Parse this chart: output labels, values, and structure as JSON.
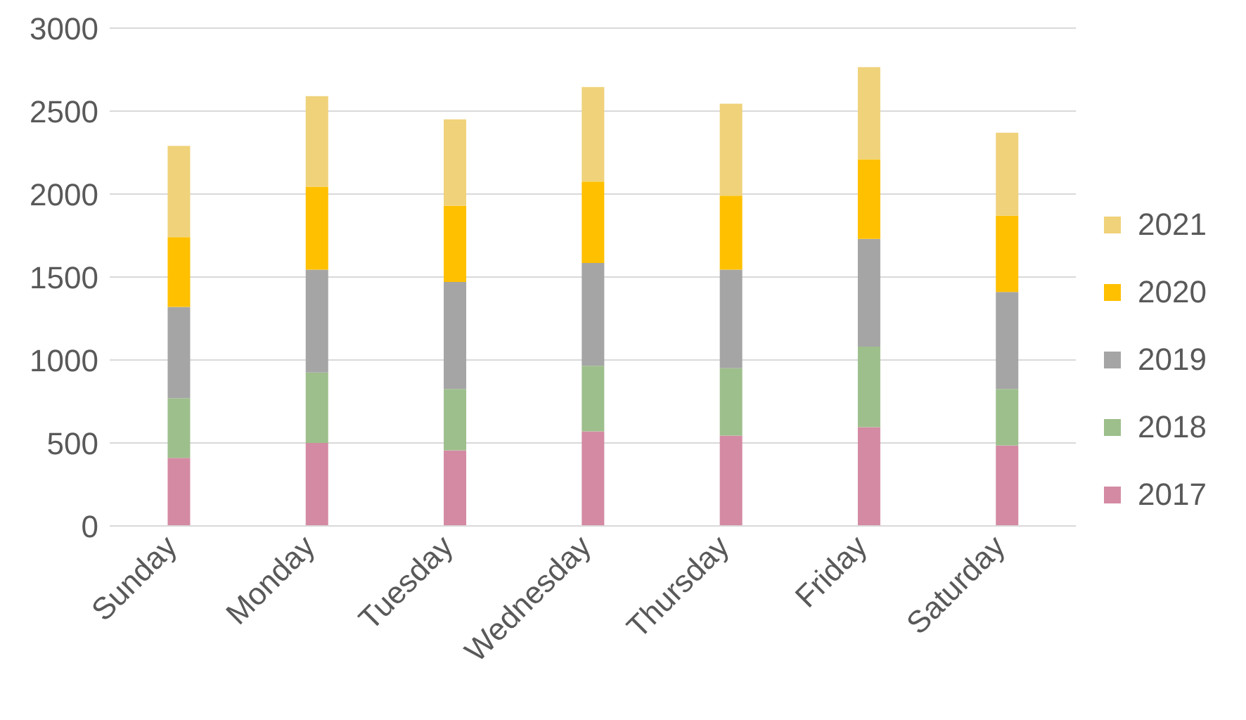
{
  "chart_data": {
    "type": "bar",
    "stacked": true,
    "categories": [
      "Sunday",
      "Monday",
      "Tuesday",
      "Wednesday",
      "Thursday",
      "Friday",
      "Saturday"
    ],
    "series": [
      {
        "name": "2017",
        "color": "#d48aa3",
        "values": [
          410,
          500,
          455,
          570,
          545,
          595,
          485
        ]
      },
      {
        "name": "2018",
        "color": "#9dbf8c",
        "values": [
          360,
          425,
          370,
          395,
          405,
          485,
          340
        ]
      },
      {
        "name": "2019",
        "color": "#a5a5a5",
        "values": [
          550,
          620,
          645,
          620,
          595,
          650,
          585
        ]
      },
      {
        "name": "2020",
        "color": "#ffc000",
        "values": [
          420,
          500,
          460,
          490,
          445,
          480,
          460
        ]
      },
      {
        "name": "2021",
        "color": "#efd27a",
        "values": [
          550,
          545,
          520,
          570,
          555,
          555,
          500
        ]
      }
    ],
    "ylim": [
      0,
      3000
    ],
    "yticks": [
      0,
      500,
      1000,
      1500,
      2000,
      2500,
      3000
    ],
    "grid": "y",
    "legend": "right"
  }
}
